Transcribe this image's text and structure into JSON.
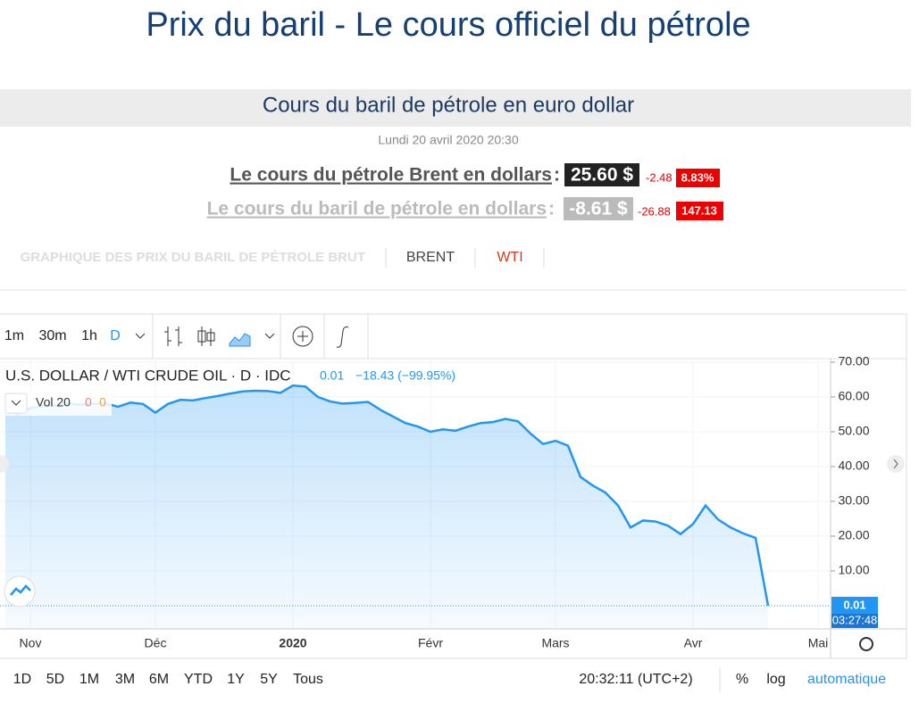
{
  "header": {
    "title": "Prix du baril - Le cours officiel du pétrole"
  },
  "panel": {
    "title": "Cours du baril de pétrole en euro dollar",
    "date": "Lundi 20 avril 2020 20:30",
    "brent": {
      "label": "Le cours du pétrole Brent en dollars",
      "sep": ":",
      "price": "25.60 $",
      "change": "-2.48",
      "pct": "8.83%"
    },
    "wti": {
      "label": "Le cours du baril de pétrole en dollars",
      "sep": ":",
      "price": "-8.61 $",
      "change": "-26.88",
      "pct": "147.13"
    }
  },
  "tabs": [
    "GRAPHIQUE DES PRIX DU BARIL DE PÉTROLE BRUT",
    "BRENT",
    "WTI"
  ],
  "toolbar": {
    "intervals": [
      "1m",
      "30m",
      "1h",
      "D"
    ]
  },
  "chart_data": {
    "type": "area",
    "title": "U.S. DOLLAR / WTI CRUDE OIL · D · IDC",
    "change": "−18.43 (−99.95%)",
    "indicator": "Vol 20",
    "indicator_values": [
      0,
      0
    ],
    "countdown": "03:27:48",
    "color": "#2196f3",
    "categories": [
      null,
      null,
      "Nov",
      null,
      null,
      null,
      null,
      null,
      null,
      null,
      null,
      null,
      "Déc",
      null,
      null,
      null,
      null,
      null,
      null,
      null,
      null,
      null,
      null,
      "2020",
      null,
      null,
      null,
      null,
      null,
      null,
      null,
      null,
      null,
      null,
      "Févr",
      null,
      null,
      null,
      null,
      null,
      null,
      null,
      null,
      null,
      "Mars",
      null,
      null,
      null,
      null,
      null,
      null,
      null,
      null,
      null,
      null,
      "Avr",
      null,
      null,
      null,
      null,
      null,
      null,
      null,
      null,
      null,
      "Mai"
    ],
    "values": [
      56.5,
      55.0,
      56.8,
      57.3,
      57.5,
      58.0,
      57.8,
      58.0,
      58.2,
      57.2,
      58.4,
      58.0,
      55.5,
      58.0,
      59.2,
      59.0,
      59.7,
      60.3,
      61.0,
      61.6,
      61.8,
      61.7,
      61.2,
      63.3,
      63.0,
      60.0,
      58.7,
      58.1,
      58.3,
      58.6,
      56.3,
      54.4,
      52.5,
      51.5,
      50.0,
      50.7,
      50.3,
      51.5,
      52.5,
      52.8,
      53.7,
      53.0,
      49.5,
      46.5,
      47.4,
      46.0,
      37.0,
      34.5,
      32.5,
      28.8,
      22.5,
      24.5,
      24.2,
      23.0,
      20.6,
      23.5,
      28.8,
      24.8,
      22.5,
      20.8,
      19.5,
      0.01,
      null,
      null,
      null,
      null
    ],
    "ylim": [
      -6.67,
      71.03
    ],
    "yticks": [
      {
        "value": 10,
        "label": "10.00"
      },
      {
        "value": 20,
        "label": "20.00"
      },
      {
        "value": 30,
        "label": "30.00"
      },
      {
        "value": 40,
        "label": "40.00"
      },
      {
        "value": 50,
        "label": "50.00"
      },
      {
        "value": 60,
        "label": "60.00"
      },
      {
        "value": 70,
        "label": "70.00"
      }
    ],
    "grid": true
  },
  "footer": {
    "ranges": [
      "1D",
      "5D",
      "1M",
      "3M",
      "6M",
      "YTD",
      "1Y",
      "5Y",
      "Tous"
    ],
    "time": "20:32:11 (UTC+2)",
    "options": [
      "%",
      "log",
      "automatique"
    ]
  }
}
